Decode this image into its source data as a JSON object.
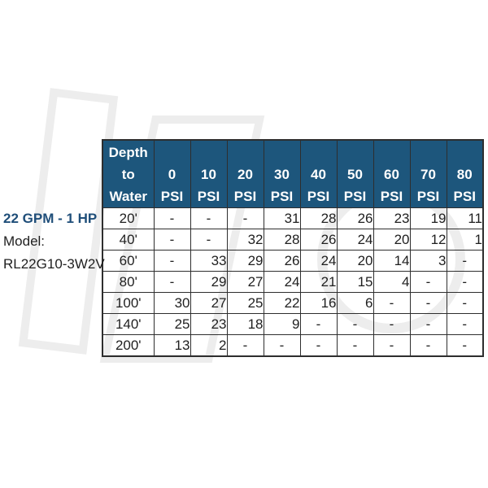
{
  "colors": {
    "page_bg": "#ffffff",
    "header_bg": "#1d567c",
    "header_text": "#ffffff",
    "grid": "#2e2e2e",
    "title_blue": "#1f4e79",
    "body_text": "#1f1f1f",
    "watermark": "#ededed"
  },
  "side_panel": {
    "title": "22 GPM - 1 HP",
    "model_label": "Model:",
    "model_number": "RL22G10-3W2V"
  },
  "chart_data": {
    "type": "table",
    "title": "22 GPM - 1 HP",
    "model": "RL22G10-3W2V",
    "corner_header_lines": [
      "Depth",
      "to",
      "Water"
    ],
    "psi_values": [
      "0",
      "10",
      "20",
      "30",
      "40",
      "50",
      "60",
      "70",
      "80"
    ],
    "psi_unit": "PSI",
    "column_headers": [
      "Depth to Water",
      "0 PSI",
      "10 PSI",
      "20 PSI",
      "30 PSI",
      "40 PSI",
      "50 PSI",
      "60 PSI",
      "70 PSI",
      "80 PSI"
    ],
    "depth_rows": [
      "20'",
      "40'",
      "60'",
      "80'",
      "100'",
      "140'",
      "200'"
    ],
    "values": [
      [
        "-",
        "-",
        "-",
        "31",
        "28",
        "26",
        "23",
        "19",
        "11"
      ],
      [
        "-",
        "-",
        "32",
        "28",
        "26",
        "24",
        "20",
        "12",
        "1"
      ],
      [
        "-",
        "33",
        "29",
        "26",
        "24",
        "20",
        "14",
        "3",
        "-"
      ],
      [
        "-",
        "29",
        "27",
        "24",
        "21",
        "15",
        "4",
        "-",
        "-"
      ],
      [
        "30",
        "27",
        "25",
        "22",
        "16",
        "6",
        "-",
        "-",
        "-"
      ],
      [
        "25",
        "23",
        "18",
        "9",
        "-",
        "-",
        "-",
        "-",
        "-"
      ],
      [
        "13",
        "2",
        "-",
        "-",
        "-",
        "-",
        "-",
        "-",
        "-"
      ]
    ]
  }
}
